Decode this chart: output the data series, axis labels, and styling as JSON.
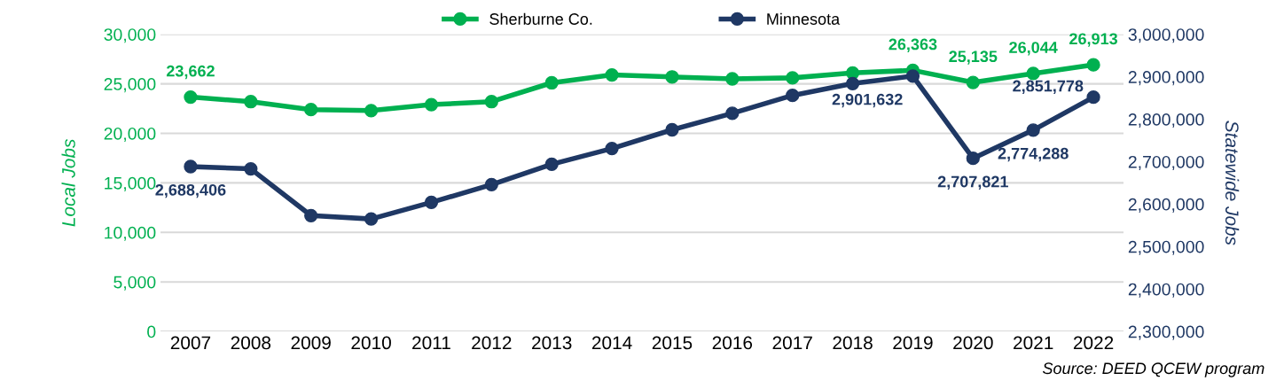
{
  "chart_data": {
    "type": "line",
    "ylabel": "Local Jobs",
    "y2label": "Statewide Jobs",
    "categories": [
      "2007",
      "2008",
      "2009",
      "2010",
      "2011",
      "2012",
      "2013",
      "2014",
      "2015",
      "2016",
      "2017",
      "2018",
      "2019",
      "2020",
      "2021",
      "2022"
    ],
    "series": [
      {
        "name": "Sherburne Co.",
        "color": "#00b050",
        "values": [
          23662,
          23200,
          22400,
          22300,
          22900,
          23200,
          25100,
          25900,
          25700,
          25500,
          25600,
          26100,
          26363,
          25135,
          26044,
          26913
        ],
        "value_labels": [
          "23,662",
          null,
          null,
          null,
          null,
          null,
          null,
          null,
          null,
          null,
          null,
          null,
          "26,363",
          "25,135",
          "26,044",
          "26,913"
        ]
      },
      {
        "name": "Minnesota",
        "color": "#1f3864",
        "axis": "y2",
        "values": [
          2688406,
          2683000,
          2573000,
          2565000,
          2604000,
          2646000,
          2694000,
          2731000,
          2775000,
          2814000,
          2856000,
          2884000,
          2901632,
          2707821,
          2774288,
          2851778
        ],
        "value_labels": [
          "2,688,406",
          null,
          null,
          null,
          null,
          null,
          null,
          null,
          null,
          null,
          null,
          null,
          "2,901,632",
          "2,707,821",
          "2,774,288",
          "2,851,778"
        ]
      }
    ],
    "ylim": [
      0,
      30000
    ],
    "yticks": [
      0,
      {
        "value": 5000,
        "label": "5,000"
      },
      {
        "value": 10000,
        "label": "10,000"
      },
      {
        "value": 15000,
        "label": "15,000"
      },
      {
        "value": 20000,
        "label": "20,000"
      },
      {
        "value": 25000,
        "label": "25,000"
      },
      {
        "value": 30000,
        "label": "30,000"
      }
    ],
    "y2lim": [
      2300000,
      3000000
    ],
    "y2ticks": [
      {
        "value": 2300000,
        "label": "2,300,000"
      },
      {
        "value": 2400000,
        "label": "2,400,000"
      },
      {
        "value": 2500000,
        "label": "2,500,000"
      },
      {
        "value": 2600000,
        "label": "2,600,000"
      },
      {
        "value": 2700000,
        "label": "2,700,000"
      },
      {
        "value": 2800000,
        "label": "2,800,000"
      },
      {
        "value": 2900000,
        "label": "2,900,000"
      },
      {
        "value": 3000000,
        "label": "3,000,000"
      }
    ],
    "grid": "y",
    "legend": "top",
    "marker": "circle",
    "line_style": "solid",
    "annotations": [
      "Source: DEED QCEW program"
    ]
  }
}
